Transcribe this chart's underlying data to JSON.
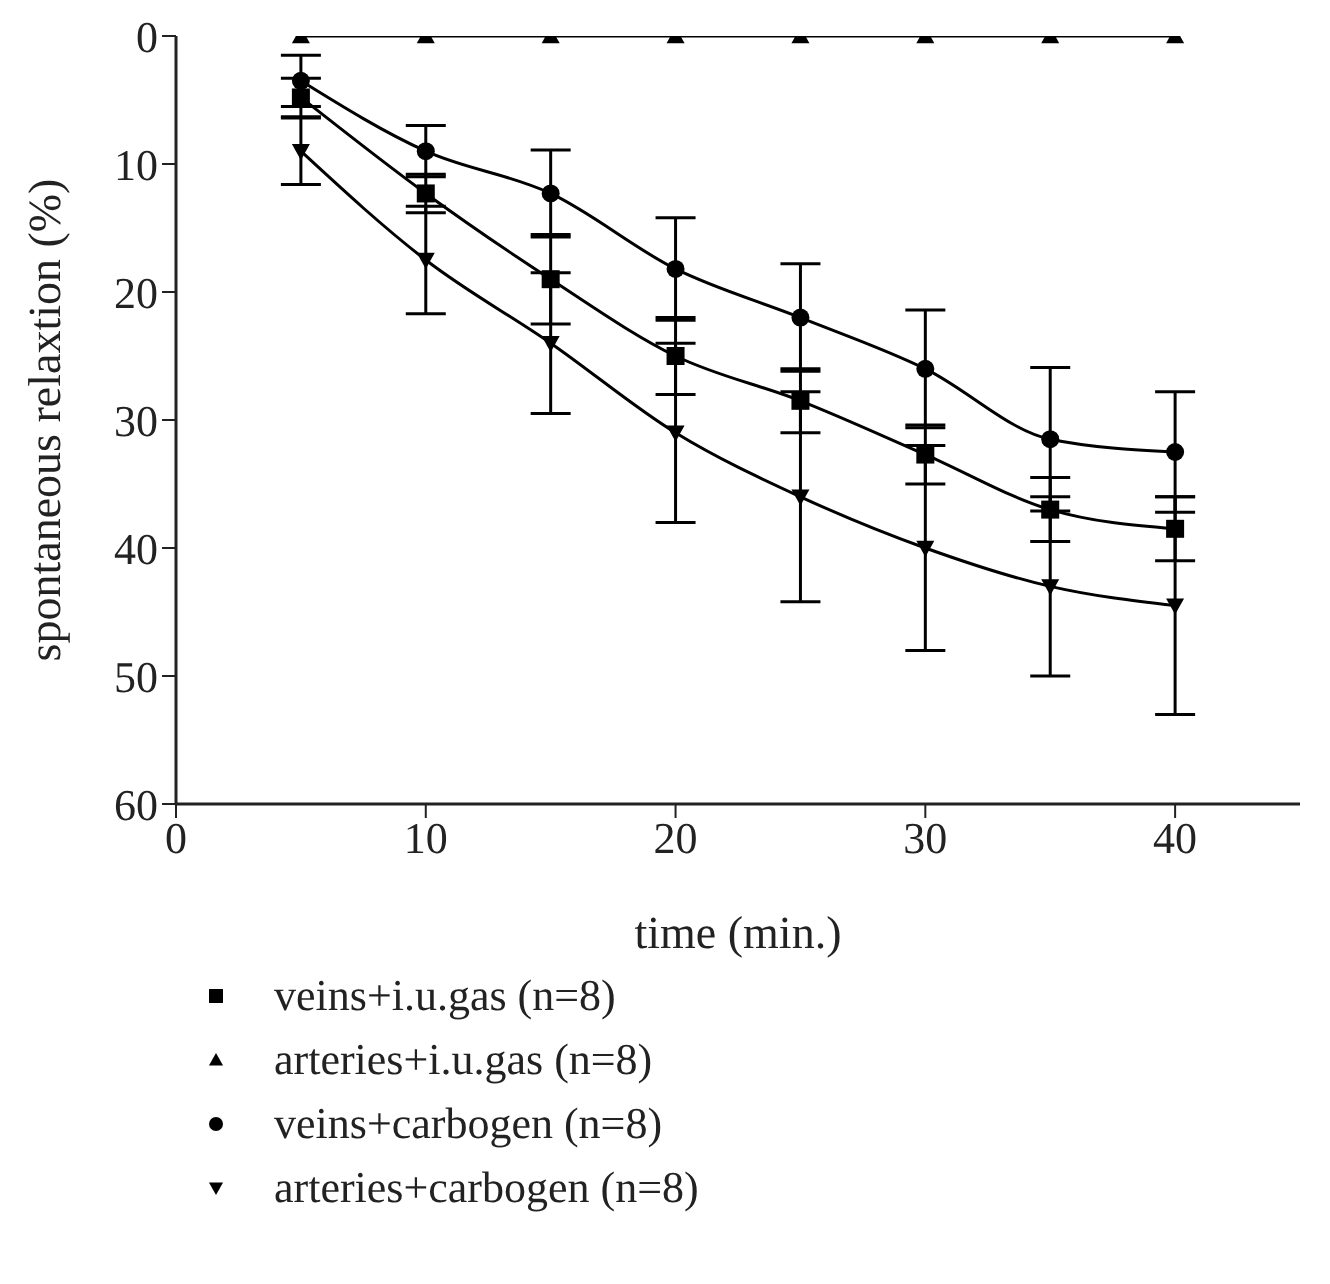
{
  "chart_data": {
    "type": "line",
    "xlabel": "time (min.)",
    "ylabel": "spontaneous relaxtion (%)",
    "x": [
      5,
      10,
      15,
      20,
      25,
      30,
      35,
      40
    ],
    "xlim": [
      0,
      45
    ],
    "xticks": [
      0,
      10,
      20,
      30,
      40
    ],
    "ylim": [
      60,
      0
    ],
    "yticks": [
      0,
      10,
      20,
      30,
      40,
      50,
      60
    ],
    "grid": false,
    "legend": "bottom",
    "line_style": "solid",
    "series": [
      {
        "name": "veins+i.u.gas (n=8)",
        "color": "#000000",
        "marker": "square",
        "values": [
          4.8,
          12.3,
          19,
          25,
          28.5,
          32.7,
          37,
          38.5
        ],
        "errors": [
          1.5,
          1.5,
          3.5,
          3,
          2.5,
          2.3,
          2.5,
          2.5
        ]
      },
      {
        "name": "arteries+i.u.gas (n=8)",
        "color": "#000000",
        "marker": "triangle",
        "values": [
          0,
          0,
          0,
          0,
          0,
          0,
          0,
          0
        ]
      },
      {
        "name": "veins+carbogen (n=8)",
        "color": "#000000",
        "marker": "circle",
        "values": [
          3.5,
          9,
          12.3,
          18.2,
          22,
          26,
          31.5,
          32.5
        ],
        "errors": [
          2,
          2,
          3.4,
          4,
          4.2,
          4.6,
          5.6,
          4.7
        ]
      },
      {
        "name": "arteries+carbogen (n=8)",
        "color": "#000000",
        "marker": "triangle-down",
        "values": [
          9,
          17.5,
          24,
          31,
          36,
          40,
          43,
          44.5
        ],
        "errors": [
          2.6,
          4.2,
          5.5,
          7,
          8.2,
          8,
          7,
          8.5
        ]
      }
    ]
  }
}
